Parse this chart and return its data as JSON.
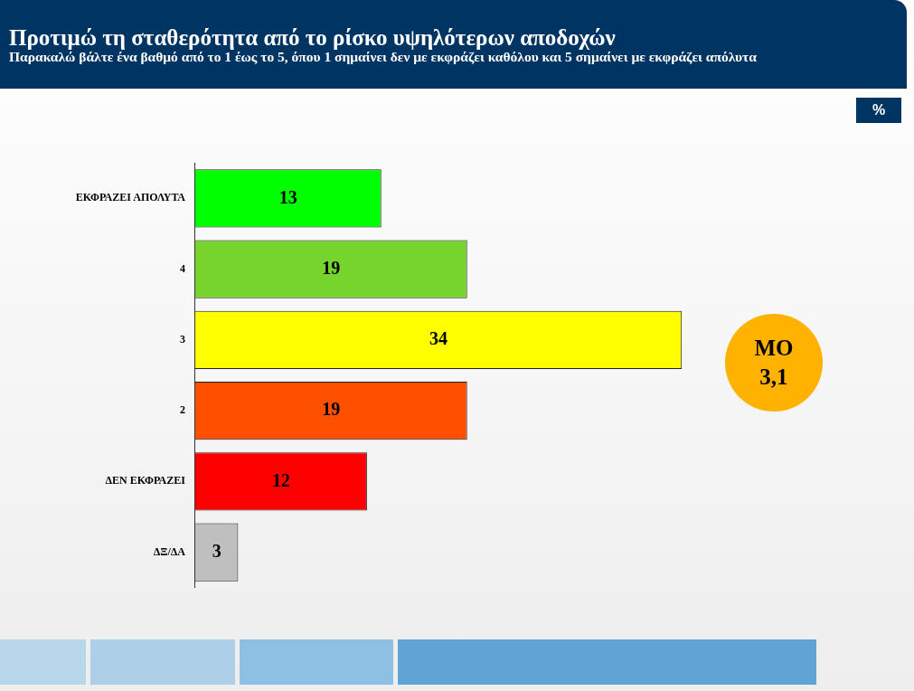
{
  "chart_data": {
    "type": "bar",
    "orientation": "horizontal",
    "title": "Προτιμώ τη σταθερότητα από το ρίσκο υψηλότερων αποδοχών",
    "subtitle": "Παρακαλώ βάλτε ένα βαθμό από το 1 έως το 5, όπου 1 σημαίνει δεν με εκφράζει  καθόλου και  5 σημαίνει με εκφράζει απόλυτα",
    "categories": [
      "ΕΚΦΡΑΖΕΙ ΑΠΟΛΥΤΑ",
      "4",
      "3",
      "2",
      "ΔΕΝ ΕΚΦΡΑΖΕΙ",
      "ΔΞ/ΔΑ"
    ],
    "values": [
      13,
      19,
      34,
      19,
      12,
      3
    ],
    "colors": [
      "#00ff00",
      "#77d42c",
      "#ffff00",
      "#ff5000",
      "#ff0000",
      "#bfbfbf"
    ],
    "data_labels": true,
    "grid": false,
    "tick_labels": "y",
    "annotations": [
      "%",
      "ΜΟ\n3,1"
    ]
  }
}
